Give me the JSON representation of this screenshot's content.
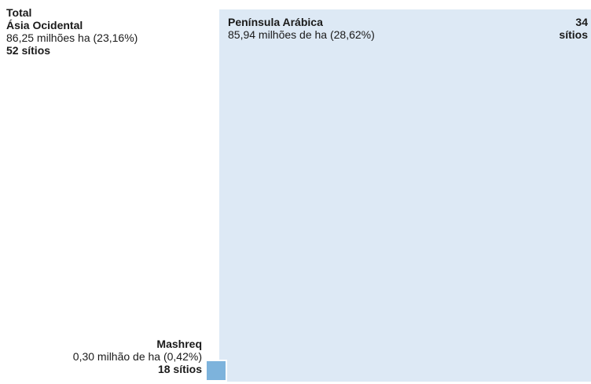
{
  "chart_data": {
    "type": "square",
    "title": "Total",
    "total": {
      "name": "Ásia Ocidental",
      "value_label": "86,25 milhões ha (23,16%)",
      "sites": "52 sítios"
    },
    "categories": [
      "Península Arábica",
      "Mashreq"
    ],
    "values": [
      85.94,
      0.3
    ],
    "value_labels": [
      "85,94 milhões de ha (28,62%)",
      "0,30 milhão de ha (0,42%)"
    ],
    "site_labels": [
      "34 sítios",
      "18 sítios"
    ],
    "colors": [
      "#dde9f5",
      "#7db3dc"
    ]
  }
}
